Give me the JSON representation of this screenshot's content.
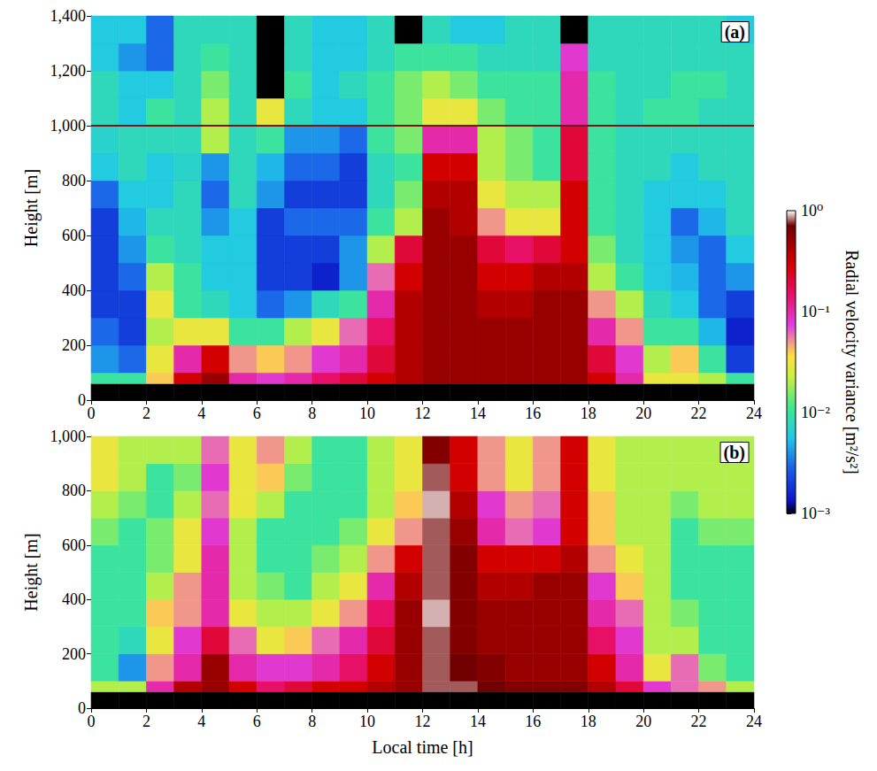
{
  "chart_data": [
    {
      "type": "heatmap",
      "title": "(a)",
      "ylabel": "Height [m]",
      "xlim": [
        0,
        24
      ],
      "xticks": [
        0,
        2,
        4,
        6,
        8,
        10,
        12,
        14,
        16,
        18,
        20,
        22,
        24
      ],
      "ylim": [
        0,
        1400
      ],
      "yticks": [
        0,
        200,
        400,
        600,
        800,
        1000,
        1200,
        1400
      ],
      "hline": {
        "y": 1000,
        "color": "#7a1010"
      },
      "x_edges": [
        0,
        1,
        2,
        3,
        4,
        5,
        6,
        7,
        8,
        9,
        10,
        11,
        12,
        13,
        14,
        15,
        16,
        17,
        18,
        19,
        20,
        21,
        22,
        23,
        24
      ],
      "y_edges": [
        0,
        60,
        100,
        200,
        300,
        400,
        500,
        600,
        700,
        800,
        900,
        1000,
        1100,
        1200,
        1300,
        1400
      ],
      "cells": [
        [
          null,
          null,
          null,
          null,
          null,
          null,
          null,
          null,
          null,
          null,
          null,
          null,
          null,
          null,
          null,
          null,
          null,
          null,
          null,
          null,
          null,
          null,
          null,
          null
        ],
        [
          0.01,
          0.01,
          0.04,
          0.3,
          0.5,
          0.1,
          0.08,
          0.1,
          0.15,
          0.2,
          0.3,
          0.4,
          0.5,
          0.5,
          0.5,
          0.5,
          0.5,
          0.5,
          0.3,
          0.1,
          0.03,
          0.03,
          0.02,
          0.01
        ],
        [
          0.004,
          0.003,
          0.03,
          0.1,
          0.3,
          0.05,
          0.04,
          0.05,
          0.08,
          0.1,
          0.2,
          0.4,
          0.5,
          0.5,
          0.5,
          0.5,
          0.5,
          0.5,
          0.2,
          0.08,
          0.02,
          0.04,
          0.01,
          0.002
        ],
        [
          0.003,
          0.002,
          0.02,
          0.03,
          0.03,
          0.01,
          0.01,
          0.02,
          0.03,
          0.06,
          0.15,
          0.4,
          0.5,
          0.5,
          0.5,
          0.5,
          0.5,
          0.5,
          0.1,
          0.05,
          0.01,
          0.01,
          0.005,
          0.0015
        ],
        [
          0.002,
          0.002,
          0.03,
          0.01,
          0.008,
          0.006,
          0.003,
          0.004,
          0.008,
          0.01,
          0.1,
          0.4,
          0.5,
          0.5,
          0.4,
          0.4,
          0.5,
          0.5,
          0.05,
          0.02,
          0.008,
          0.006,
          0.003,
          0.002
        ],
        [
          0.002,
          0.003,
          0.02,
          0.01,
          0.006,
          0.006,
          0.002,
          0.002,
          0.0015,
          0.004,
          0.06,
          0.3,
          0.5,
          0.5,
          0.3,
          0.3,
          0.4,
          0.4,
          0.02,
          0.01,
          0.006,
          0.005,
          0.003,
          0.004
        ],
        [
          0.002,
          0.004,
          0.01,
          0.008,
          0.006,
          0.006,
          0.002,
          0.002,
          0.002,
          0.004,
          0.02,
          0.2,
          0.5,
          0.5,
          0.2,
          0.15,
          0.2,
          0.3,
          0.015,
          0.008,
          0.006,
          0.004,
          0.003,
          0.006
        ],
        [
          0.002,
          0.005,
          0.008,
          0.008,
          0.004,
          0.006,
          0.002,
          0.003,
          0.003,
          0.003,
          0.01,
          0.02,
          0.5,
          0.4,
          0.05,
          0.03,
          0.03,
          0.3,
          0.01,
          0.008,
          0.006,
          0.003,
          0.005,
          0.008
        ],
        [
          0.003,
          0.006,
          0.006,
          0.008,
          0.003,
          0.008,
          0.004,
          0.002,
          0.002,
          0.002,
          0.008,
          0.015,
          0.4,
          0.4,
          0.03,
          0.02,
          0.02,
          0.3,
          0.01,
          0.008,
          0.006,
          0.006,
          0.006,
          0.008
        ],
        [
          0.006,
          0.008,
          0.006,
          0.007,
          0.004,
          0.008,
          0.005,
          0.003,
          0.003,
          0.002,
          0.008,
          0.01,
          0.3,
          0.3,
          0.02,
          0.015,
          0.01,
          0.2,
          0.01,
          0.008,
          0.008,
          0.006,
          0.008,
          0.008
        ],
        [
          0.007,
          0.008,
          0.008,
          0.008,
          0.02,
          0.008,
          0.01,
          0.004,
          0.004,
          0.003,
          0.01,
          0.015,
          0.1,
          0.1,
          0.02,
          0.015,
          0.01,
          0.2,
          0.01,
          0.008,
          0.008,
          0.008,
          0.008,
          0.008
        ],
        [
          0.008,
          0.006,
          0.01,
          0.008,
          0.02,
          0.008,
          0.03,
          0.008,
          0.006,
          0.006,
          0.01,
          0.015,
          0.03,
          0.03,
          0.015,
          0.01,
          0.01,
          0.1,
          0.01,
          0.008,
          0.01,
          0.01,
          0.008,
          0.008
        ],
        [
          0.008,
          0.006,
          0.006,
          0.008,
          0.015,
          0.008,
          null,
          0.01,
          0.006,
          0.008,
          0.01,
          0.015,
          0.02,
          0.015,
          0.01,
          0.01,
          0.01,
          0.1,
          0.01,
          0.008,
          0.008,
          0.01,
          0.01,
          0.008
        ],
        [
          0.006,
          0.004,
          0.003,
          0.008,
          0.01,
          0.008,
          null,
          0.008,
          0.006,
          0.006,
          0.008,
          0.01,
          0.01,
          0.01,
          0.008,
          0.008,
          0.008,
          0.08,
          0.008,
          0.008,
          0.008,
          0.008,
          0.008,
          0.008
        ],
        [
          0.006,
          0.006,
          0.003,
          0.008,
          0.008,
          0.008,
          null,
          0.008,
          0.006,
          0.006,
          0.008,
          null,
          0.008,
          0.006,
          0.006,
          0.008,
          0.008,
          null,
          0.008,
          0.008,
          0.008,
          0.008,
          0.008,
          0.006
        ]
      ]
    },
    {
      "type": "heatmap",
      "title": "(b)",
      "xlabel": "Local time [h]",
      "ylabel": "Height [m]",
      "xlim": [
        0,
        24
      ],
      "xticks": [
        0,
        2,
        4,
        6,
        8,
        10,
        12,
        14,
        16,
        18,
        20,
        22,
        24
      ],
      "ylim": [
        0,
        1000
      ],
      "yticks": [
        0,
        200,
        400,
        600,
        800,
        1000
      ],
      "x_edges": [
        0,
        1,
        2,
        3,
        4,
        5,
        6,
        7,
        8,
        9,
        10,
        11,
        12,
        13,
        14,
        15,
        16,
        17,
        18,
        19,
        20,
        21,
        22,
        23,
        24
      ],
      "y_edges": [
        0,
        60,
        100,
        200,
        300,
        400,
        500,
        600,
        700,
        800,
        900,
        1000
      ],
      "cells": [
        [
          null,
          null,
          null,
          null,
          null,
          null,
          null,
          null,
          null,
          null,
          null,
          null,
          null,
          null,
          null,
          null,
          null,
          null,
          null,
          null,
          null,
          null,
          null,
          null
        ],
        [
          0.02,
          0.02,
          0.1,
          0.4,
          0.5,
          0.3,
          0.15,
          0.2,
          0.3,
          0.3,
          0.4,
          0.5,
          0.8,
          0.8,
          0.7,
          0.6,
          0.6,
          0.6,
          0.4,
          0.2,
          0.08,
          0.06,
          0.05,
          0.02
        ],
        [
          0.01,
          0.004,
          0.05,
          0.1,
          0.5,
          0.1,
          0.08,
          0.08,
          0.1,
          0.15,
          0.3,
          0.5,
          0.8,
          0.7,
          0.6,
          0.5,
          0.5,
          0.5,
          0.3,
          0.1,
          0.03,
          0.06,
          0.015,
          0.01
        ],
        [
          0.01,
          0.008,
          0.03,
          0.08,
          0.2,
          0.06,
          0.03,
          0.04,
          0.06,
          0.1,
          0.2,
          0.5,
          0.8,
          0.6,
          0.5,
          0.5,
          0.5,
          0.5,
          0.15,
          0.08,
          0.02,
          0.02,
          0.01,
          0.01
        ],
        [
          0.01,
          0.01,
          0.04,
          0.05,
          0.1,
          0.03,
          0.02,
          0.02,
          0.03,
          0.05,
          0.15,
          0.5,
          0.9,
          0.6,
          0.5,
          0.5,
          0.5,
          0.5,
          0.1,
          0.06,
          0.02,
          0.015,
          0.01,
          0.01
        ],
        [
          0.01,
          0.01,
          0.02,
          0.05,
          0.1,
          0.02,
          0.015,
          0.01,
          0.02,
          0.03,
          0.1,
          0.4,
          0.8,
          0.6,
          0.4,
          0.4,
          0.5,
          0.5,
          0.08,
          0.04,
          0.02,
          0.01,
          0.01,
          0.01
        ],
        [
          0.01,
          0.01,
          0.015,
          0.03,
          0.1,
          0.02,
          0.01,
          0.01,
          0.015,
          0.02,
          0.05,
          0.3,
          0.8,
          0.6,
          0.3,
          0.3,
          0.3,
          0.4,
          0.05,
          0.03,
          0.02,
          0.01,
          0.01,
          0.01
        ],
        [
          0.015,
          0.01,
          0.015,
          0.03,
          0.08,
          0.02,
          0.01,
          0.01,
          0.01,
          0.015,
          0.03,
          0.05,
          0.8,
          0.5,
          0.1,
          0.06,
          0.08,
          0.3,
          0.04,
          0.02,
          0.02,
          0.01,
          0.015,
          0.015
        ],
        [
          0.02,
          0.015,
          0.01,
          0.02,
          0.06,
          0.03,
          0.02,
          0.01,
          0.01,
          0.01,
          0.02,
          0.04,
          0.9,
          0.4,
          0.08,
          0.05,
          0.06,
          0.3,
          0.04,
          0.02,
          0.02,
          0.015,
          0.02,
          0.02
        ],
        [
          0.03,
          0.02,
          0.01,
          0.015,
          0.08,
          0.03,
          0.04,
          0.015,
          0.01,
          0.01,
          0.02,
          0.03,
          0.8,
          0.3,
          0.05,
          0.03,
          0.05,
          0.3,
          0.03,
          0.02,
          0.02,
          0.02,
          0.02,
          0.02
        ],
        [
          0.03,
          0.02,
          0.02,
          0.02,
          0.06,
          0.03,
          0.05,
          0.02,
          0.01,
          0.01,
          0.02,
          0.03,
          0.6,
          0.3,
          0.05,
          0.03,
          0.05,
          0.3,
          0.03,
          0.02,
          0.02,
          0.02,
          0.02,
          0.02
        ]
      ]
    }
  ],
  "colorbar": {
    "label": "Radial velocity variance [m²/s²]",
    "log": true,
    "range": [
      0.001,
      1
    ],
    "ticks": [
      {
        "value": 1,
        "label": "10⁰"
      },
      {
        "value": 0.1,
        "label": "10⁻¹"
      },
      {
        "value": 0.01,
        "label": "10⁻²"
      },
      {
        "value": 0.001,
        "label": "10⁻³"
      }
    ]
  }
}
